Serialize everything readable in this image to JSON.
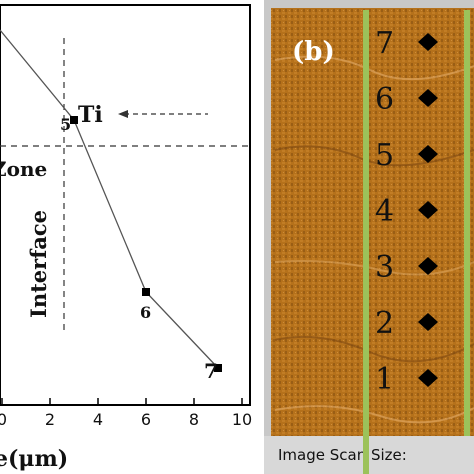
{
  "chart_data": [
    {
      "type": "line",
      "xlabel": "e(μm)",
      "xlim": [
        0,
        10
      ],
      "x_ticks": [
        "0",
        "2",
        "4",
        "6",
        "8",
        "10"
      ],
      "points": [
        {
          "x": 3.0,
          "y": 5,
          "label": "5"
        },
        {
          "x": 6.0,
          "y": 6,
          "label": "6"
        },
        {
          "x": 9.0,
          "y": 7,
          "label": "7"
        }
      ],
      "annotations": {
        "zone": "Zone",
        "interface": "Interface",
        "ti": "Ti"
      },
      "interface_x": 3.2,
      "colors": {
        "line": "#555555",
        "marker": "#000000",
        "dash": "#333333"
      }
    },
    {
      "type": "scatter",
      "panel_label": "(b)",
      "markers": [
        "7",
        "6",
        "5",
        "4",
        "3",
        "2",
        "1"
      ],
      "status_text": "Image Scan Size:",
      "colors": {
        "image": "#b8731c",
        "line": "#9cc25a",
        "marker": "#000000",
        "frame": "#c8c8c8"
      }
    }
  ]
}
